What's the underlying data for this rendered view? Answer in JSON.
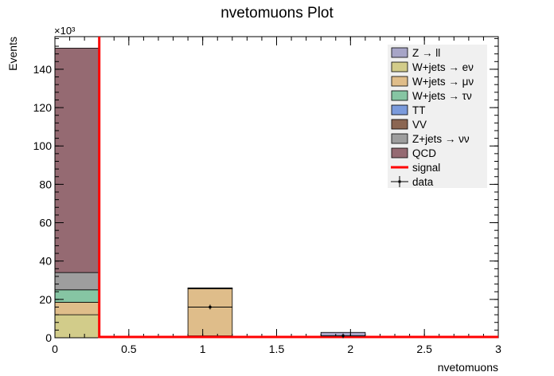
{
  "chart_data": {
    "type": "bar",
    "title": "nvetomuons Plot",
    "xlabel": "nvetomuons",
    "ylabel": "Events",
    "y_multiplier": "×10³",
    "xlim": [
      0,
      3
    ],
    "ylim": [
      0,
      157000
    ],
    "x_ticks": [
      "0",
      "0.5",
      "1",
      "1.5",
      "2",
      "2.5",
      "3"
    ],
    "y_ticks": [
      "0",
      "20",
      "40",
      "60",
      "80",
      "100",
      "120",
      "140"
    ],
    "bins": [
      {
        "lo": 0.0,
        "hi": 0.3
      },
      {
        "lo": 0.9,
        "hi": 1.2
      },
      {
        "lo": 1.8,
        "hi": 2.1
      }
    ],
    "series": [
      {
        "name": "W+jets → eν",
        "color": "#d2cc8a",
        "values": [
          12000,
          1000,
          100
        ]
      },
      {
        "name": "W+jets → μν",
        "color": "#dfbd8a",
        "values": [
          6500,
          24500,
          500
        ]
      },
      {
        "name": "W+jets → τν",
        "color": "#86c5a3",
        "values": [
          6500,
          300,
          100
        ]
      },
      {
        "name": "TT",
        "color": "#7b9bdc",
        "values": [
          0,
          0,
          0
        ]
      },
      {
        "name": "VV",
        "color": "#8b6652",
        "values": [
          0,
          0,
          0
        ]
      },
      {
        "name": "Z+jets → νν",
        "color": "#9e9e9e",
        "values": [
          9000,
          200,
          100
        ]
      },
      {
        "name": "Z → ll",
        "color": "#a7a5c7",
        "values": [
          0,
          0,
          2000
        ]
      },
      {
        "name": "QCD",
        "color": "#956a72",
        "values": [
          117000,
          0,
          0
        ]
      }
    ],
    "data_points": [
      {
        "x": 1.05,
        "y": 16000
      },
      {
        "x": 1.95,
        "y": 1000
      }
    ],
    "signal_line": {
      "name": "signal",
      "color": "#ff0000",
      "x": 0.3
    },
    "legend": [
      {
        "label": "Z → ll",
        "kind": "box",
        "color": "#a7a5c7"
      },
      {
        "label": "W+jets → eν",
        "kind": "box",
        "color": "#d2cc8a"
      },
      {
        "label": "W+jets → μν",
        "kind": "box",
        "color": "#dfbd8a"
      },
      {
        "label": "W+jets → τν",
        "kind": "box",
        "color": "#86c5a3"
      },
      {
        "label": "TT",
        "kind": "box",
        "color": "#7b9bdc"
      },
      {
        "label": "VV",
        "kind": "box",
        "color": "#8b6652"
      },
      {
        "label": "Z+jets → νν",
        "kind": "box",
        "color": "#9e9e9e"
      },
      {
        "label": "QCD",
        "kind": "box",
        "color": "#956a72"
      },
      {
        "label": "signal",
        "kind": "line",
        "color": "#ff0000"
      },
      {
        "label": "data",
        "kind": "marker",
        "color": "#000000"
      }
    ],
    "legend_position": "top-right",
    "grid": false
  }
}
